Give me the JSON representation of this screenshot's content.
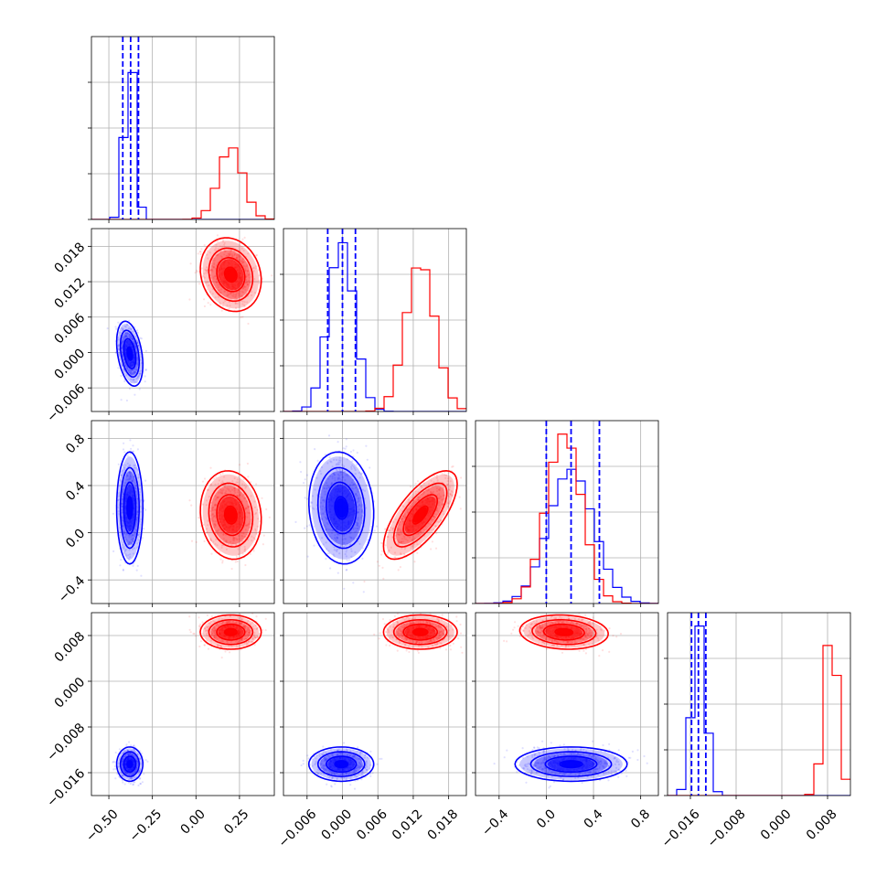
{
  "chart_data": {
    "type": "corner",
    "grid": true,
    "colors": {
      "series_a": "#0000ff",
      "series_b": "#ff0000"
    },
    "params": [
      {
        "range": [
          -0.6,
          0.45
        ],
        "ticks": [
          -0.5,
          -0.25,
          0.0,
          0.25
        ],
        "tick_labels": [
          "−0.50",
          "−0.25",
          "0.00",
          "0.25"
        ],
        "series_a": {
          "mean": -0.38,
          "sd": 0.03,
          "quantiles": [
            -0.42,
            -0.375,
            -0.33
          ]
        },
        "series_b": {
          "mean": 0.2,
          "sd": 0.07
        }
      },
      {
        "range": [
          -0.01,
          0.021
        ],
        "ticks": [
          -0.006,
          0.0,
          0.006,
          0.012,
          0.018
        ],
        "tick_labels": [
          "−0.006",
          "0.000",
          "0.006",
          "0.012",
          "0.018"
        ],
        "series_a": {
          "mean": -0.0002,
          "sd": 0.0022,
          "quantiles": [
            -0.0025,
            0.0,
            0.0022
          ]
        },
        "series_b": {
          "mean": 0.0132,
          "sd": 0.0025
        }
      },
      {
        "range": [
          -0.6,
          0.95
        ],
        "ticks": [
          -0.4,
          0.0,
          0.4,
          0.8
        ],
        "tick_labels": [
          "−0.4",
          "0.0",
          "0.4",
          "0.8"
        ],
        "series_a": {
          "mean": 0.21,
          "sd": 0.19,
          "quantiles": [
            0.0,
            0.21,
            0.45
          ]
        },
        "series_b": {
          "mean": 0.15,
          "sd": 0.15
        }
      },
      {
        "range": [
          -0.02,
          0.012
        ],
        "ticks": [
          -0.016,
          -0.008,
          0.0,
          0.008
        ],
        "tick_labels": [
          "−0.016",
          "−0.008",
          "0.000",
          "0.008"
        ],
        "series_a": {
          "mean": -0.0145,
          "sd": 0.0012,
          "quantiles": [
            -0.0158,
            -0.0146,
            -0.0133
          ]
        },
        "series_b": {
          "mean": 0.0086,
          "sd": 0.0012
        }
      }
    ],
    "pairs": [
      {
        "row": 1,
        "col": 0,
        "rho_a": -0.35,
        "rho_b": -0.15
      },
      {
        "row": 2,
        "col": 0,
        "rho_a": 0.0,
        "rho_b": -0.1
      },
      {
        "row": 2,
        "col": 1,
        "rho_a": -0.1,
        "rho_b": 0.7
      },
      {
        "row": 3,
        "col": 0,
        "rho_a": 0.0,
        "rho_b": 0.0
      },
      {
        "row": 3,
        "col": 1,
        "rho_a": 0.0,
        "rho_b": 0.0
      },
      {
        "row": 3,
        "col": 2,
        "rho_a": 0.0,
        "rho_b": -0.1
      }
    ]
  }
}
